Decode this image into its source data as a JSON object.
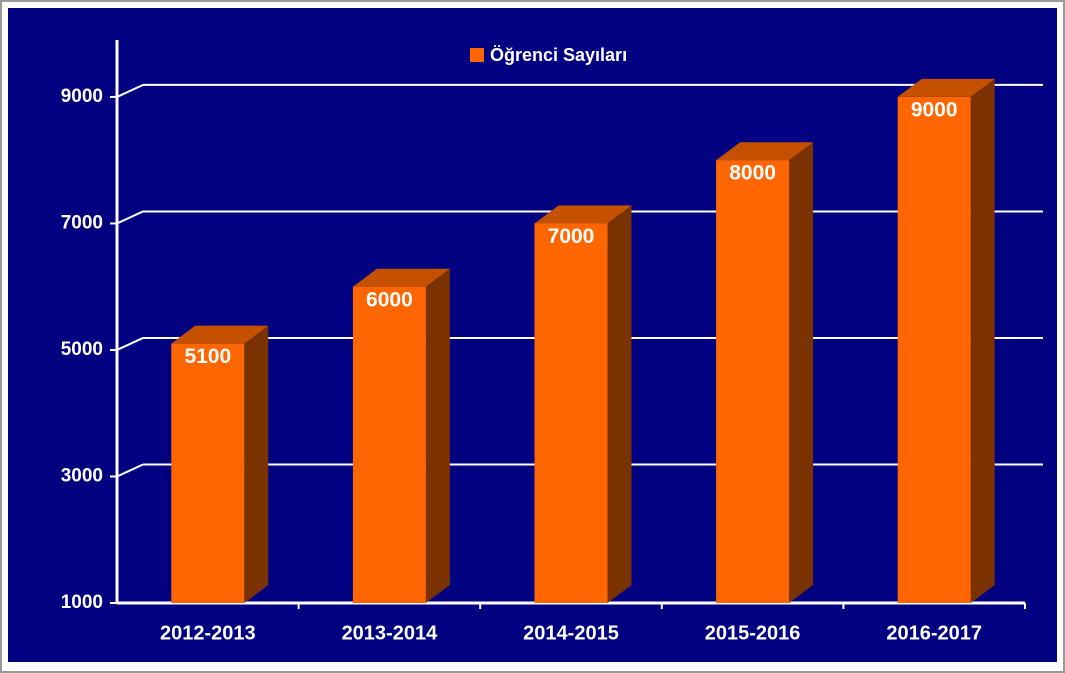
{
  "chart_data": {
    "type": "bar3d",
    "categories": [
      "2012-2013",
      "2013-2014",
      "2014-2015",
      "2015-2016",
      "2016-2017"
    ],
    "series": [
      {
        "name": "Öğrenci Sayıları",
        "color": "#ff6600",
        "values": [
          5100,
          6000,
          7000,
          8000,
          9000
        ]
      }
    ],
    "ylim": [
      1000,
      9900
    ],
    "yticks": [
      1000,
      3000,
      5000,
      7000,
      9000
    ],
    "grid": true,
    "legend": "top"
  }
}
